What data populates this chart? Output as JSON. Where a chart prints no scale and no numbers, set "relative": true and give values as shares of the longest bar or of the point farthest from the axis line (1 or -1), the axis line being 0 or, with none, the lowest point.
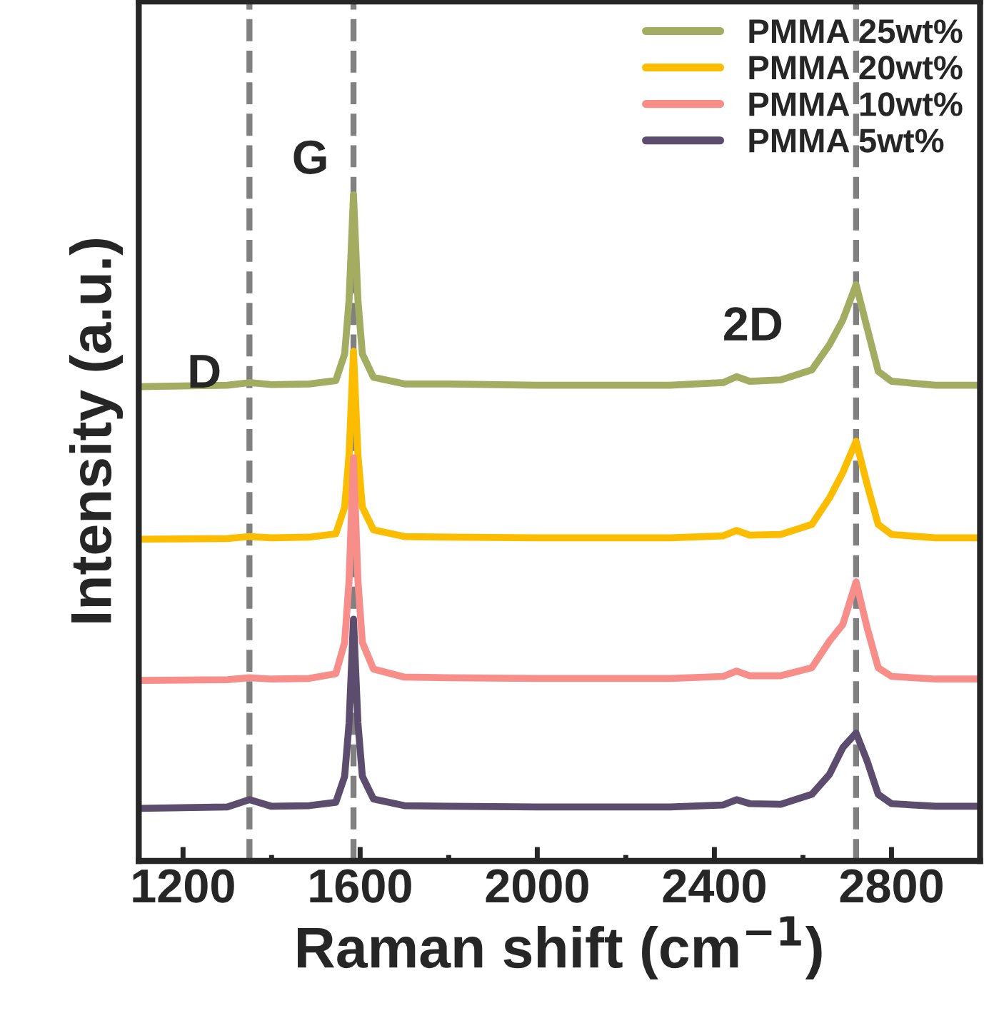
{
  "chart_data": {
    "type": "line",
    "xlabel": "Raman shift (cm$^{−1}$)",
    "ylabel": "Intensity (a.u.)",
    "relative": true,
    "x": [
      1100,
      1300,
      1350,
      1400,
      1485,
      1545,
      1565,
      1575,
      1585,
      1595,
      1605,
      1630,
      1700,
      1800,
      2000,
      2300,
      2420,
      2450,
      2480,
      2550,
      2620,
      2660,
      2690,
      2720,
      2745,
      2770,
      2800,
      2900,
      3000
    ],
    "xlim": [
      1100,
      3000
    ],
    "xticks": [
      1200,
      1600,
      2000,
      2400,
      2800
    ],
    "series": [
      {
        "name": "PMMA 25wt%",
        "color": "#a3ad62",
        "values": [
          0.712,
          0.714,
          0.718,
          0.715,
          0.716,
          0.721,
          0.761,
          0.842,
          1.0,
          0.842,
          0.761,
          0.726,
          0.716,
          0.716,
          0.714,
          0.714,
          0.718,
          0.727,
          0.72,
          0.722,
          0.737,
          0.775,
          0.812,
          0.865,
          0.8,
          0.735,
          0.72,
          0.714,
          0.714
        ]
      },
      {
        "name": "PMMA 20wt%",
        "color": "#fcbd00",
        "values": [
          0.483,
          0.484,
          0.487,
          0.485,
          0.486,
          0.491,
          0.531,
          0.61,
          0.765,
          0.61,
          0.531,
          0.497,
          0.487,
          0.486,
          0.485,
          0.485,
          0.488,
          0.496,
          0.489,
          0.49,
          0.505,
          0.545,
          0.583,
          0.63,
          0.565,
          0.505,
          0.49,
          0.485,
          0.485
        ]
      },
      {
        "name": "PMMA 10wt%",
        "color": "#f78e8a",
        "values": [
          0.271,
          0.272,
          0.275,
          0.273,
          0.274,
          0.281,
          0.328,
          0.421,
          0.605,
          0.421,
          0.328,
          0.288,
          0.276,
          0.275,
          0.274,
          0.274,
          0.277,
          0.285,
          0.278,
          0.278,
          0.29,
          0.33,
          0.355,
          0.419,
          0.35,
          0.29,
          0.277,
          0.273,
          0.273
        ]
      },
      {
        "name": "PMMA 5wt%",
        "color": "#5c4d6e",
        "values": [
          0.079,
          0.081,
          0.092,
          0.082,
          0.083,
          0.088,
          0.127,
          0.207,
          0.363,
          0.207,
          0.127,
          0.093,
          0.083,
          0.082,
          0.081,
          0.081,
          0.084,
          0.092,
          0.086,
          0.085,
          0.1,
          0.13,
          0.17,
          0.192,
          0.15,
          0.1,
          0.086,
          0.082,
          0.082
        ]
      }
    ],
    "ref_lines": [
      {
        "axis": "x",
        "value": 1350,
        "color": "#808080",
        "line_style": "dashed"
      },
      {
        "axis": "x",
        "value": 1585,
        "color": "#808080",
        "line_style": "dashed"
      },
      {
        "axis": "x",
        "value": 2720,
        "color": "#808080",
        "line_style": "dashed"
      }
    ],
    "annotations": [
      "D",
      "G",
      "2D"
    ],
    "legend": "top right",
    "grid": false,
    "marker": "none",
    "line_style": "solid"
  }
}
